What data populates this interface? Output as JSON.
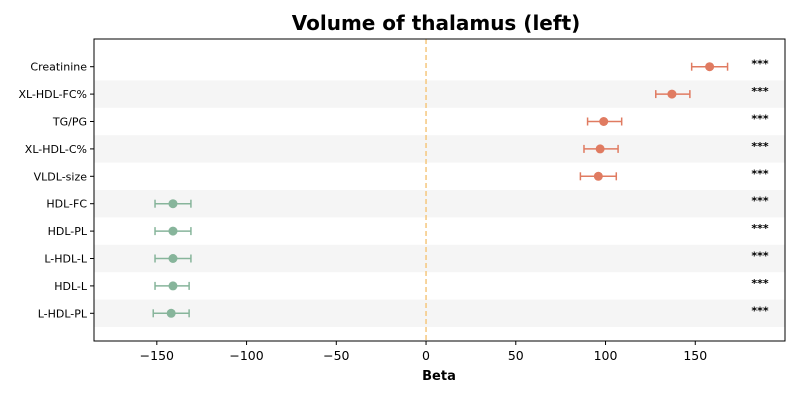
{
  "chart_data": {
    "type": "forest",
    "title": "Volume of thalamus (left)",
    "xlabel": "Beta",
    "xlim": [
      -185,
      200
    ],
    "xticks": [
      -150,
      -100,
      -50,
      0,
      50,
      100,
      150
    ],
    "xtick_labels": [
      "−150",
      "−100",
      "−50",
      "0",
      "50",
      "100",
      "150"
    ],
    "reference_line": 0,
    "categories": [
      "Creatinine",
      "XL-HDL-FC%",
      "TG/PG",
      "XL-HDL-C%",
      "VLDL-size",
      "HDL-FC",
      "HDL-PL",
      "L-HDL-L",
      "HDL-L",
      "L-HDL-PL"
    ],
    "beta": [
      158,
      137,
      99,
      97,
      96,
      -141,
      -141,
      -141,
      -141,
      -142
    ],
    "ci_low": [
      148,
      128,
      90,
      88,
      86,
      -151,
      -151,
      -151,
      -151,
      -152
    ],
    "ci_high": [
      168,
      147,
      109,
      107,
      106,
      -131,
      -131,
      -131,
      -132,
      -132
    ],
    "significance": [
      "***",
      "***",
      "***",
      "***",
      "***",
      "***",
      "***",
      "***",
      "***",
      "***"
    ],
    "positive_color": "#e07b61",
    "negative_color": "#87b59b",
    "reference_color": "#f5c77e",
    "band_color": "#f5f5f5"
  }
}
